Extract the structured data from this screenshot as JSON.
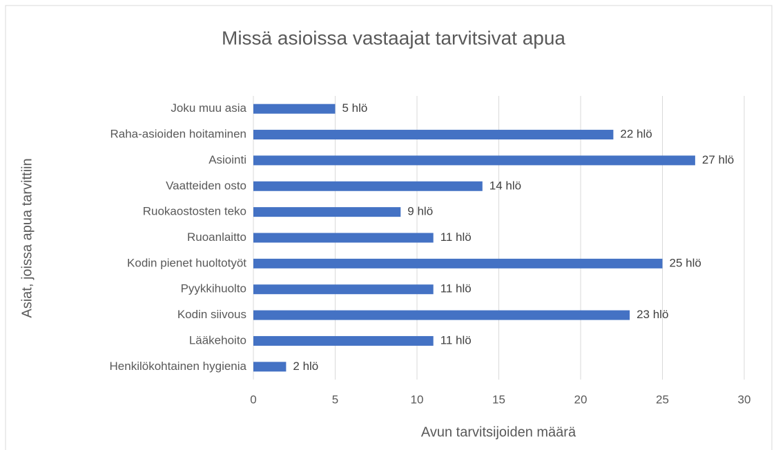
{
  "chart_data": {
    "type": "bar",
    "orientation": "horizontal",
    "title": "Missä asioissa vastaajat tarvitsivat apua",
    "x_label": "Avun tarvitsijoiden määrä",
    "y_label": "Asiat, joissa apua tarvittiin",
    "categories": [
      "Joku muu asia",
      "Raha-asioiden hoitaminen",
      "Asiointi",
      "Vaatteiden osto",
      "Ruokaostosten teko",
      "Ruoanlaitto",
      "Kodin pienet huoltotyöt",
      "Pyykkihuolto",
      "Kodin siivous",
      "Lääkehoito",
      "Henkilökohtainen hygienia"
    ],
    "values": [
      5,
      22,
      27,
      14,
      9,
      11,
      25,
      11,
      23,
      11,
      2
    ],
    "value_labels": [
      "5 hlö",
      "22 hlö",
      "27 hlö",
      "14 hlö",
      "9 hlö",
      "11 hlö",
      "25 hlö",
      "11 hlö",
      "23 hlö",
      "11 hlö",
      "2 hlö"
    ],
    "color": "#4472c4",
    "xlim": [
      0,
      30
    ],
    "xticks": [
      0,
      5,
      10,
      15,
      20,
      25,
      30
    ],
    "grid": true
  }
}
